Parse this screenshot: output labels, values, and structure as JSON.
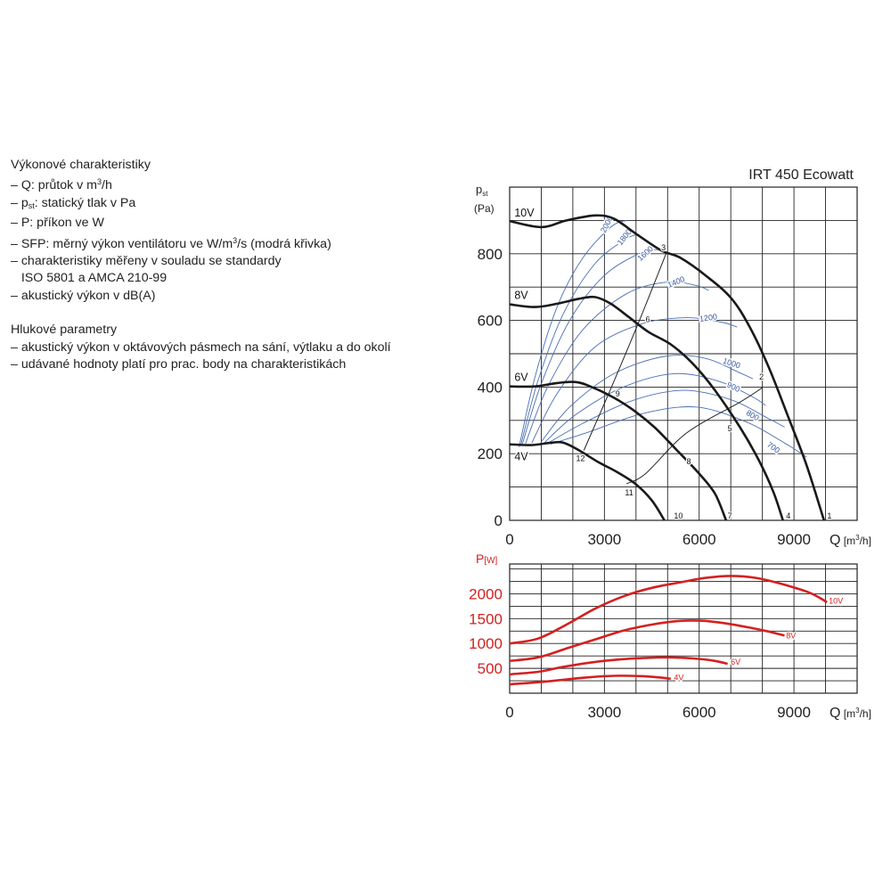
{
  "legend": {
    "heading1": "Výkonové charakteristiky",
    "items1": [
      {
        "prefix": "– Q: průtok v m",
        "sup": "3",
        "suffix": "/h"
      },
      {
        "prefix": "– p",
        "sub": "st",
        "suffix": ": statický tlak v Pa"
      },
      {
        "prefix": "– P: příkon ve W"
      },
      {
        "prefix": "– SFP: měrný výkon ventilátoru ve W/m",
        "sup": "3",
        "suffix": "/s (modrá křivka)"
      },
      {
        "prefix": "– charakteristiky měřeny v souladu se standardy"
      },
      {
        "prefix": "   ISO 5801 a AMCA 210-99"
      },
      {
        "prefix": "– akustický výkon v dB(A)"
      }
    ],
    "heading2": "Hlukové parametry",
    "items2": [
      "– akustický výkon v oktávových pásmech na sání, výtlaku a do okolí",
      "– udávané hodnoty platí pro prac. body na charakteristikách"
    ]
  },
  "chart_data": [
    {
      "type": "line",
      "title": "IRT 450 Ecowatt",
      "ylabel_main": "p",
      "ylabel_sub": "st",
      "yunit": "(Pa)",
      "xlabel": "Q",
      "xunit_pre": "[m",
      "xunit_sup": "3",
      "xunit_post": "/h]",
      "xlim": [
        0,
        11000
      ],
      "ylim": [
        0,
        1000
      ],
      "xticks": [
        0,
        3000,
        6000,
        9000
      ],
      "yticks": [
        0,
        200,
        400,
        600,
        800
      ],
      "grid": true,
      "colors": {
        "fan_curve": "#1a1a1a",
        "sfp_curve": "#4a6fb5",
        "sfp_label": "#3a5aa0",
        "system_curve": "#222222"
      },
      "series": [
        {
          "name": "10V",
          "points": [
            [
              0,
              898
            ],
            [
              1000,
              880
            ],
            [
              1800,
              900
            ],
            [
              2700,
              915
            ],
            [
              3300,
              905
            ],
            [
              4000,
              860
            ],
            [
              4800,
              810
            ],
            [
              5400,
              788
            ],
            [
              6200,
              735
            ],
            [
              7000,
              668
            ],
            [
              7600,
              580
            ],
            [
              8200,
              460
            ],
            [
              8800,
              315
            ],
            [
              9400,
              165
            ],
            [
              9950,
              0
            ]
          ]
        },
        {
          "name": "8V",
          "points": [
            [
              0,
              648
            ],
            [
              800,
              640
            ],
            [
              1500,
              650
            ],
            [
              2200,
              665
            ],
            [
              2700,
              670
            ],
            [
              3200,
              650
            ],
            [
              3800,
              608
            ],
            [
              4400,
              565
            ],
            [
              5100,
              528
            ],
            [
              5800,
              470
            ],
            [
              6500,
              390
            ],
            [
              7300,
              278
            ],
            [
              7900,
              178
            ],
            [
              8350,
              85
            ],
            [
              8650,
              0
            ]
          ]
        },
        {
          "name": "6V",
          "points": [
            [
              0,
              402
            ],
            [
              800,
              402
            ],
            [
              1500,
              412
            ],
            [
              2100,
              415
            ],
            [
              2600,
              400
            ],
            [
              3300,
              368
            ],
            [
              4000,
              325
            ],
            [
              4600,
              278
            ],
            [
              5300,
              210
            ],
            [
              6000,
              140
            ],
            [
              6500,
              80
            ],
            [
              6850,
              0
            ]
          ]
        },
        {
          "name": "4V",
          "points": [
            [
              0,
              228
            ],
            [
              700,
              226
            ],
            [
              1300,
              233
            ],
            [
              1700,
              233
            ],
            [
              2200,
              210
            ],
            [
              2800,
              175
            ],
            [
              3400,
              145
            ],
            [
              4000,
              108
            ],
            [
              4500,
              60
            ],
            [
              4900,
              0
            ]
          ]
        }
      ],
      "sfp_curves": [
        {
          "label": "2000",
          "points": [
            [
              300,
              220
            ],
            [
              800,
              430
            ],
            [
              1500,
              640
            ],
            [
              2300,
              785
            ],
            [
              3200,
              880
            ],
            [
              3700,
              900
            ]
          ]
        },
        {
          "label": "1800",
          "points": [
            [
              350,
              225
            ],
            [
              900,
              420
            ],
            [
              1700,
              620
            ],
            [
              2700,
              770
            ],
            [
              3700,
              845
            ],
            [
              4100,
              858
            ]
          ]
        },
        {
          "label": "1600",
          "points": [
            [
              400,
              228
            ],
            [
              1000,
              410
            ],
            [
              1900,
              600
            ],
            [
              3000,
              735
            ],
            [
              4200,
              805
            ],
            [
              4700,
              812
            ]
          ]
        },
        {
          "label": "1400",
          "points": [
            [
              500,
              230
            ],
            [
              1200,
              400
            ],
            [
              2300,
              570
            ],
            [
              3700,
              680
            ],
            [
              5000,
              715
            ],
            [
              5900,
              705
            ],
            [
              6300,
              690
            ]
          ]
        },
        {
          "label": "1200",
          "points": [
            [
              700,
              232
            ],
            [
              1500,
              380
            ],
            [
              2700,
              520
            ],
            [
              4200,
              590
            ],
            [
              5600,
              608
            ],
            [
              6700,
              595
            ],
            [
              7200,
              580
            ]
          ]
        },
        {
          "label": "1000",
          "points": [
            [
              1000,
              236
            ],
            [
              1900,
              340
            ],
            [
              3300,
              440
            ],
            [
              4900,
              492
            ],
            [
              6200,
              486
            ],
            [
              7300,
              442
            ],
            [
              7700,
              425
            ]
          ]
        },
        {
          "label": "900",
          "points": [
            [
              1100,
              233
            ],
            [
              2100,
              318
            ],
            [
              3600,
              400
            ],
            [
              5200,
              440
            ],
            [
              6600,
              418
            ],
            [
              7700,
              370
            ],
            [
              8100,
              345
            ]
          ]
        },
        {
          "label": "800",
          "points": [
            [
              1200,
              231
            ],
            [
              2300,
              290
            ],
            [
              3900,
              360
            ],
            [
              5500,
              390
            ],
            [
              7000,
              362
            ],
            [
              8200,
              305
            ],
            [
              8700,
              280
            ]
          ]
        },
        {
          "label": "700",
          "points": [
            [
              1300,
              229
            ],
            [
              2500,
              265
            ],
            [
              4200,
              320
            ],
            [
              5900,
              340
            ],
            [
              7500,
              295
            ],
            [
              8700,
              232
            ],
            [
              9400,
              190
            ]
          ]
        }
      ],
      "system_lines": [
        {
          "points": [
            [
              2350,
              210
            ],
            [
              3200,
              395
            ],
            [
              4100,
              598
            ],
            [
              4950,
              800
            ]
          ]
        },
        {
          "points": [
            [
              3700,
              110
            ],
            [
              4300,
              140
            ],
            [
              5600,
              262
            ],
            [
              7300,
              355
            ],
            [
              8000,
              398
            ]
          ]
        }
      ],
      "points_labels": [
        {
          "label": "1",
          "q": 10050,
          "p": 5
        },
        {
          "label": "2",
          "q": 7900,
          "p": 423
        },
        {
          "label": "3",
          "q": 4800,
          "p": 810
        },
        {
          "label": "4",
          "q": 8750,
          "p": 5
        },
        {
          "label": "5",
          "q": 6900,
          "p": 268
        },
        {
          "label": "6",
          "q": 4300,
          "p": 595
        },
        {
          "label": "7",
          "q": 6900,
          "p": 5
        },
        {
          "label": "8",
          "q": 5600,
          "p": 168
        },
        {
          "label": "9",
          "q": 3350,
          "p": 372
        },
        {
          "label": "10",
          "q": 5200,
          "p": 5
        },
        {
          "label": "11",
          "q": 3650,
          "p": 75
        },
        {
          "label": "12",
          "q": 2100,
          "p": 178
        }
      ],
      "series_labels": [
        {
          "label": "10V",
          "q": 150,
          "p": 912
        },
        {
          "label": "8V",
          "q": 150,
          "p": 665
        },
        {
          "label": "6V",
          "q": 150,
          "p": 418
        },
        {
          "label": "4V",
          "q": 150,
          "p": 180
        }
      ]
    },
    {
      "type": "line",
      "ylabel_main": "P",
      "yunit": "[W]",
      "xlabel": "Q",
      "xunit_pre": "[m",
      "xunit_sup": "3",
      "xunit_post": "/h]",
      "xlim": [
        0,
        11000
      ],
      "ylim": [
        0,
        2600
      ],
      "xticks": [
        0,
        3000,
        6000,
        9000
      ],
      "yticks": [
        500,
        1000,
        1500,
        2000
      ],
      "grid": true,
      "colors": {
        "power_curve": "#d42020",
        "axis_label": "#d42020"
      },
      "series": [
        {
          "name": "10V",
          "points": [
            [
              0,
              1000
            ],
            [
              900,
              1100
            ],
            [
              1800,
              1380
            ],
            [
              2700,
              1700
            ],
            [
              3600,
              1950
            ],
            [
              4500,
              2120
            ],
            [
              5400,
              2230
            ],
            [
              6200,
              2320
            ],
            [
              7000,
              2360
            ],
            [
              7800,
              2320
            ],
            [
              8600,
              2200
            ],
            [
              9500,
              2020
            ],
            [
              10050,
              1830
            ]
          ]
        },
        {
          "name": "8V",
          "points": [
            [
              0,
              650
            ],
            [
              900,
              720
            ],
            [
              1800,
              900
            ],
            [
              2700,
              1080
            ],
            [
              3600,
              1260
            ],
            [
              4500,
              1380
            ],
            [
              5300,
              1450
            ],
            [
              6000,
              1460
            ],
            [
              6800,
              1410
            ],
            [
              7600,
              1320
            ],
            [
              8200,
              1240
            ],
            [
              8700,
              1160
            ]
          ]
        },
        {
          "name": "6V",
          "points": [
            [
              0,
              380
            ],
            [
              900,
              430
            ],
            [
              1700,
              530
            ],
            [
              2600,
              620
            ],
            [
              3500,
              680
            ],
            [
              4300,
              710
            ],
            [
              5000,
              720
            ],
            [
              5800,
              700
            ],
            [
              6500,
              650
            ],
            [
              6900,
              590
            ]
          ]
        },
        {
          "name": "4V",
          "points": [
            [
              0,
              180
            ],
            [
              900,
              220
            ],
            [
              1700,
              270
            ],
            [
              2500,
              320
            ],
            [
              3300,
              350
            ],
            [
              4100,
              345
            ],
            [
              4700,
              320
            ],
            [
              5100,
              290
            ]
          ]
        }
      ],
      "series_labels": [
        {
          "label": "10V",
          "q": 10100,
          "p": 1800
        },
        {
          "label": "8V",
          "q": 8750,
          "p": 1100
        },
        {
          "label": "6V",
          "q": 7000,
          "p": 570
        },
        {
          "label": "4V",
          "q": 5200,
          "p": 260
        }
      ]
    }
  ]
}
